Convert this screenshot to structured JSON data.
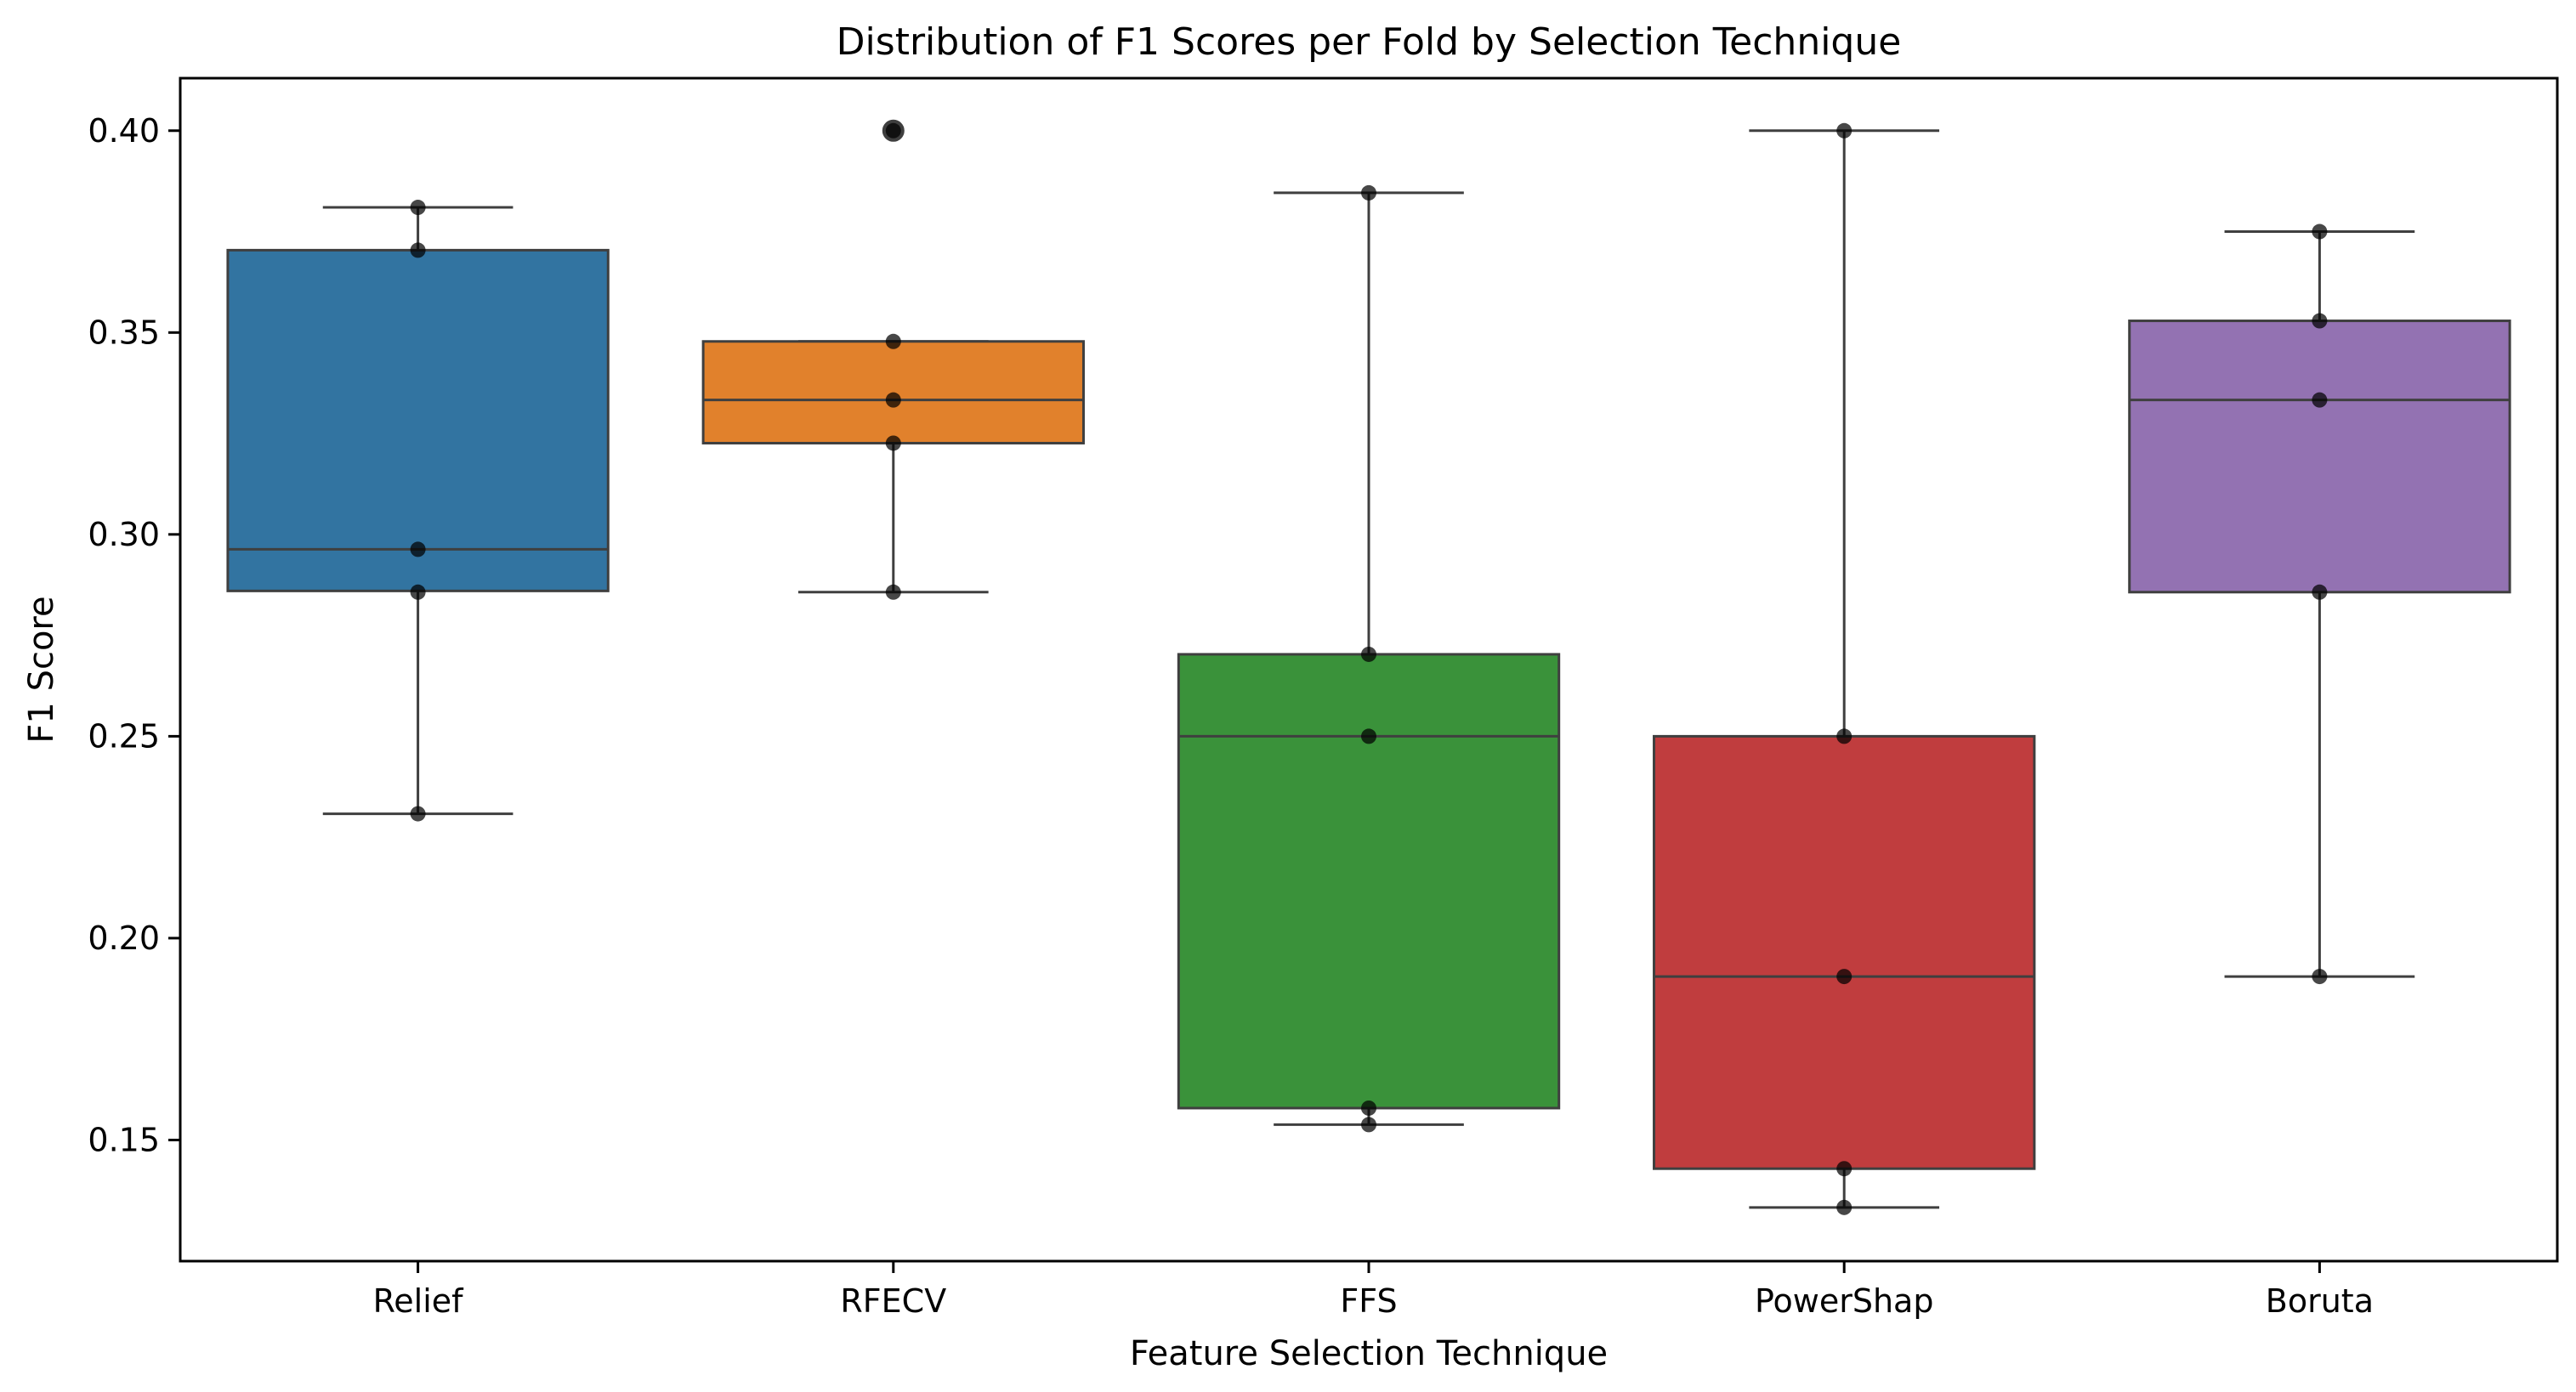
{
  "chart_data": {
    "type": "box",
    "title": "Distribution of F1 Scores per Fold by Selection Technique",
    "xlabel": "Feature Selection Technique",
    "ylabel": "F1 Score",
    "ylim": [
      0.12,
      0.413
    ],
    "yticks": [
      0.15,
      0.2,
      0.25,
      0.3,
      0.35,
      0.4
    ],
    "ytick_labels": [
      "0.15",
      "0.20",
      "0.25",
      "0.30",
      "0.35",
      "0.40"
    ],
    "grid": false,
    "categories": [
      "Relief",
      "RFECV",
      "FFS",
      "PowerShap",
      "Boruta"
    ],
    "colors": [
      "#3274a1",
      "#e1812c",
      "#3a923a",
      "#c03d3e",
      "#9372b2"
    ],
    "boxes": [
      {
        "q1": 0.286,
        "median": 0.2963,
        "q3": 0.3704,
        "whisker_low": 0.2308,
        "whisker_high": 0.381,
        "outliers": []
      },
      {
        "q1": 0.3226,
        "median": 0.3333,
        "q3": 0.3478,
        "whisker_low": 0.2857,
        "whisker_high": 0.3478,
        "outliers": [
          0.4
        ]
      },
      {
        "q1": 0.1579,
        "median": 0.25,
        "q3": 0.2703,
        "whisker_low": 0.1538,
        "whisker_high": 0.3846,
        "outliers": []
      },
      {
        "q1": 0.1429,
        "median": 0.1905,
        "q3": 0.25,
        "whisker_low": 0.1333,
        "whisker_high": 0.4,
        "outliers": []
      },
      {
        "q1": 0.2857,
        "median": 0.3333,
        "q3": 0.3529,
        "whisker_low": 0.1905,
        "whisker_high": 0.375,
        "outliers": []
      }
    ],
    "points": [
      [
        0.381,
        0.3704,
        0.2963,
        0.2857,
        0.2308
      ],
      [
        0.4,
        0.3478,
        0.3333,
        0.3226,
        0.2857
      ],
      [
        0.3846,
        0.2703,
        0.25,
        0.1579,
        0.1538
      ],
      [
        0.4,
        0.25,
        0.1905,
        0.1429,
        0.1333
      ],
      [
        0.375,
        0.3529,
        0.3333,
        0.2857,
        0.1905
      ]
    ]
  }
}
